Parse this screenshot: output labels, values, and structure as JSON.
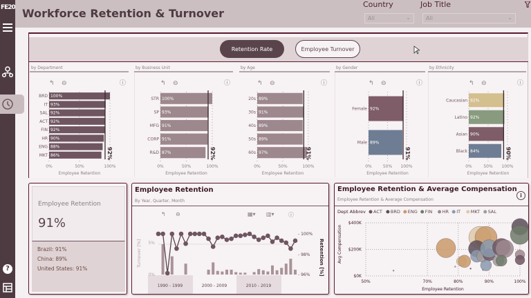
{
  "app": {
    "logo": "FE20",
    "title": "Workforce Retention & Turnover"
  },
  "sidebar": {
    "items": [
      {
        "icon": "menu-icon"
      },
      {
        "icon": "org-chart-icon"
      },
      {
        "icon": "history-clock-icon",
        "selected": true
      },
      {
        "icon": "help-icon"
      },
      {
        "icon": "layout-icon"
      }
    ]
  },
  "filters": {
    "country": {
      "label": "Country",
      "value": "All"
    },
    "job_title": {
      "label": "Job Title",
      "value": "All"
    }
  },
  "toggle": {
    "retention_label": "Retention Rate",
    "turnover_label": "Employee Turnover",
    "active": "Retention Rate"
  },
  "colors": {
    "primary": "#5a444b",
    "bar": "#6e5560",
    "bar_light": "#9d888e",
    "female": "#7e5c68",
    "male": "#6e7d93",
    "caucasian": "#d4bf8f",
    "latino": "#889b7f",
    "asian": "#7e5c68",
    "black": "#6e7d93"
  },
  "chart_data": [
    {
      "type": "bar",
      "title": "by Department",
      "xlabel": "Employee Retention",
      "ticks": [
        "0%",
        "50%",
        "100%"
      ],
      "avg_label": "92%",
      "avg": 92,
      "categories": [
        "BRD",
        "IT",
        "SAL",
        "ACT",
        "FIN",
        "HR",
        "ENG",
        "MKT"
      ],
      "values": [
        100,
        93,
        92,
        92,
        92,
        90,
        88,
        86
      ],
      "labels": [
        "100%",
        "93%",
        "92%",
        "92%",
        "92%",
        "90%",
        "88%",
        "86%"
      ]
    },
    {
      "type": "bar",
      "title": "by Business Unit",
      "xlabel": "Employee Retention",
      "ticks": [
        "0%",
        "50%",
        "100%"
      ],
      "avg_label": "92%",
      "avg": 92,
      "categories": [
        "STR",
        "SP",
        "MFG",
        "CORP",
        "R&D"
      ],
      "values": [
        100,
        93,
        91,
        91,
        87
      ],
      "labels": [
        "100%",
        "93%",
        "91%",
        "91%",
        "87%"
      ]
    },
    {
      "type": "bar",
      "title": "by Age",
      "xlabel": "Employee Retention",
      "ticks": [
        "0%",
        "50%",
        "100%"
      ],
      "avg_label": "91%",
      "avg": 91,
      "categories": [
        "20s",
        "30s",
        "40s",
        "50s",
        "60s"
      ],
      "values": [
        89,
        91,
        89,
        89,
        97
      ],
      "labels": [
        "89%",
        "91%",
        "89%",
        "89%",
        "97%"
      ]
    },
    {
      "type": "bar",
      "title": "by Gender",
      "xlabel": "Employee Retention",
      "ticks": [
        "0%",
        "50%",
        "100%"
      ],
      "avg_label": "91%",
      "avg": 91,
      "categories": [
        "Female",
        "Male"
      ],
      "values": [
        92,
        89
      ],
      "labels": [
        "92%",
        "89%"
      ]
    },
    {
      "type": "bar",
      "title": "by Ethnicity",
      "xlabel": "Employee Retention",
      "ticks": [
        "0%",
        "50%",
        "100%"
      ],
      "avg_label": "90%",
      "avg": 90,
      "categories": [
        "Caucasian",
        "Latino",
        "Asian",
        "Black"
      ],
      "values": [
        92,
        92,
        90,
        84
      ],
      "labels": [
        "92%",
        "92%",
        "90%",
        "84%"
      ]
    },
    {
      "type": "line",
      "title": "Employee Retention",
      "subtitle": "By Year, Quarter, Month",
      "y_left_label": "Turnover [%]",
      "y_right_label": "Retention [%]",
      "left_ticks": [
        "0%",
        "5%"
      ],
      "right_ticks": [
        "96%",
        "98%",
        "100%"
      ],
      "periods": [
        "1990 - 1999",
        "2000 - 2009",
        "2010 - 2019"
      ],
      "retention": [
        100,
        100,
        96,
        100,
        98.5,
        100,
        99,
        100,
        100,
        100,
        100,
        99.5,
        98.7,
        99.6,
        99.7,
        99.4,
        99.5,
        99.8,
        99.8,
        99.9,
        100,
        99.7,
        99.4,
        99.6,
        99.8,
        99.2,
        99.6,
        99.3,
        99.1,
        98.5,
        99.3
      ],
      "turnover": [
        0,
        5,
        0,
        3,
        0,
        0,
        1.8,
        0,
        0,
        0,
        0,
        0.8,
        2,
        0.6,
        0.5,
        0.8,
        0.8,
        0.4,
        0.3,
        0.3,
        0,
        0.4,
        0.9,
        0.7,
        0.5,
        1.5,
        0.7,
        1.1,
        1.8,
        2.6,
        0.8
      ]
    },
    {
      "type": "scatter",
      "title": "Employee Retention & Average Compensation",
      "subtitle": "Employee Retention & Average Compensation",
      "legend_title": "Dept Abbrev",
      "xlabel": "Employee Retention",
      "ylabel": "Avg Compensation",
      "x_ticks": [
        "50%",
        "70%",
        "80%",
        "90%",
        "100%"
      ],
      "y_ticks": [
        "$0K",
        "$200K",
        "$400K"
      ],
      "xlim": [
        50,
        100
      ],
      "ylim": [
        0,
        400
      ],
      "legend": [
        {
          "name": "ACT",
          "color": "#6e5560"
        },
        {
          "name": "BRD",
          "color": "#5a4e58"
        },
        {
          "name": "ENG",
          "color": "#c99a6a"
        },
        {
          "name": "FIN",
          "color": "#6e7a6a"
        },
        {
          "name": "HR",
          "color": "#9d888e"
        },
        {
          "name": "IT",
          "color": "#8a9aad"
        },
        {
          "name": "MKT",
          "color": "#e0c9a8"
        },
        {
          "name": "SAL",
          "color": "#a09a9a"
        }
      ],
      "points": [
        [
          76,
          210,
          "ENG",
          14
        ],
        [
          81,
          110,
          "MKT",
          7
        ],
        [
          82,
          110,
          "ENG",
          9
        ],
        [
          87,
          290,
          "MKT",
          16
        ],
        [
          89,
          290,
          "ENG",
          16
        ],
        [
          86,
          205,
          "BRD",
          12
        ],
        [
          86,
          150,
          "IT",
          9
        ],
        [
          88,
          150,
          "SAL",
          9
        ],
        [
          90,
          160,
          "ACT",
          9
        ],
        [
          90,
          205,
          "IT",
          13
        ],
        [
          94,
          215,
          "ACT",
          13
        ],
        [
          95,
          205,
          "HR",
          13
        ],
        [
          93,
          115,
          "SAL",
          8
        ],
        [
          94,
          115,
          "FIN",
          8
        ],
        [
          89,
          80,
          "IT",
          8
        ],
        [
          100,
          370,
          "BRD",
          12
        ],
        [
          100,
          310,
          "FIN",
          14
        ],
        [
          100,
          160,
          "HR",
          7
        ],
        [
          100,
          120,
          "ACT",
          7
        ],
        [
          59,
          40,
          "SAL",
          1
        ],
        [
          79,
          70,
          "SAL",
          1
        ],
        [
          84,
          55,
          "BRD",
          1
        ],
        [
          88,
          45,
          "IT",
          1
        ]
      ]
    },
    {
      "type": "kpi",
      "title": "Employee Retention",
      "value": "91%",
      "breakdown": [
        "Brazil: 91%",
        "China: 89%",
        "United States: 91%"
      ]
    }
  ]
}
